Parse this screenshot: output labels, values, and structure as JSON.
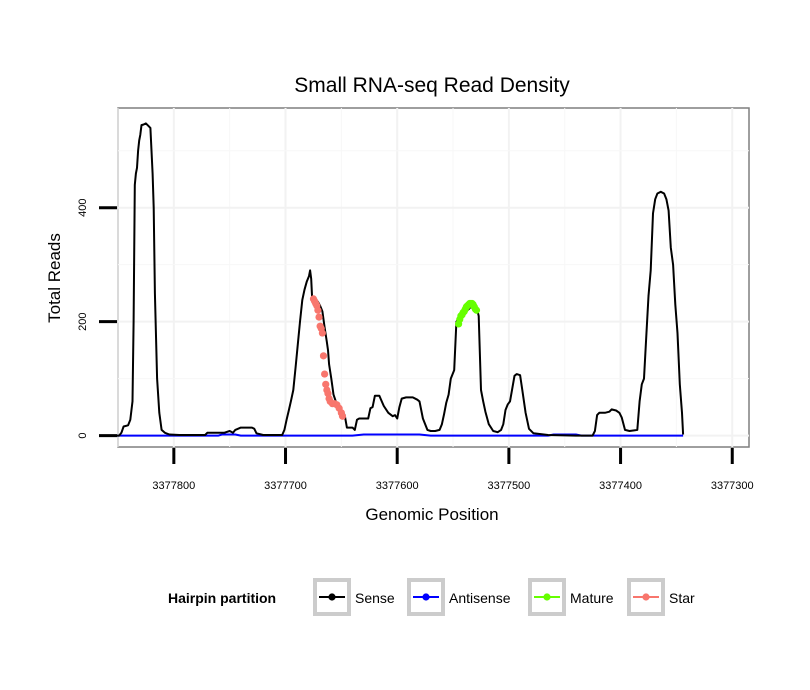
{
  "chart_data": {
    "type": "line",
    "title": "Small RNA-seq Read Density",
    "xlabel": "Genomic Position",
    "ylabel": "Total Reads",
    "x_reversed": true,
    "xlim": [
      3377850,
      3377285
    ],
    "ylim": [
      -20,
      575
    ],
    "x_ticks": [
      3377800,
      3377700,
      3377600,
      3377500,
      3377400,
      3377300
    ],
    "x_tick_labels": [
      "3377800",
      "3377700",
      "3377600",
      "3377500",
      "3377400",
      "3377300"
    ],
    "y_ticks": [
      0,
      200,
      400
    ],
    "y_tick_labels": [
      "0",
      "200",
      "400"
    ],
    "grid": true,
    "legend": {
      "title": "Hairpin partition",
      "position": "bottom",
      "entries": [
        {
          "name": "Sense",
          "color": "#000000"
        },
        {
          "name": "Antisense",
          "color": "#0000ff"
        },
        {
          "name": "Mature",
          "color": "#66ff00"
        },
        {
          "name": "Star",
          "color": "#f8766d"
        }
      ]
    },
    "series": [
      {
        "name": "Sense",
        "color": "#000000",
        "style": "line",
        "points": [
          [
            3377854,
            0
          ],
          [
            3377849,
            0
          ],
          [
            3377847,
            5
          ],
          [
            3377845,
            16
          ],
          [
            3377841,
            18
          ],
          [
            3377839,
            28
          ],
          [
            3377837,
            60
          ],
          [
            3377836,
            200
          ],
          [
            3377835,
            440
          ],
          [
            3377834,
            460
          ],
          [
            3377833,
            470
          ],
          [
            3377832,
            500
          ],
          [
            3377831,
            518
          ],
          [
            3377830,
            528
          ],
          [
            3377829,
            545
          ],
          [
            3377827,
            546
          ],
          [
            3377825,
            548
          ],
          [
            3377823,
            544
          ],
          [
            3377821,
            540
          ],
          [
            3377820,
            500
          ],
          [
            3377819,
            460
          ],
          [
            3377818,
            400
          ],
          [
            3377817,
            250
          ],
          [
            3377815,
            100
          ],
          [
            3377813,
            40
          ],
          [
            3377811,
            10
          ],
          [
            3377808,
            5
          ],
          [
            3377804,
            2
          ],
          [
            3377795,
            1
          ],
          [
            3377780,
            1
          ],
          [
            3377772,
            1
          ],
          [
            3377770,
            5
          ],
          [
            3377755,
            5
          ],
          [
            3377750,
            8
          ],
          [
            3377747,
            5
          ],
          [
            3377745,
            10
          ],
          [
            3377740,
            14
          ],
          [
            3377735,
            14
          ],
          [
            3377730,
            14
          ],
          [
            3377728,
            12
          ],
          [
            3377726,
            4
          ],
          [
            3377720,
            1
          ],
          [
            3377703,
            1
          ],
          [
            3377701,
            10
          ],
          [
            3377699,
            28
          ],
          [
            3377697,
            45
          ],
          [
            3377695,
            62
          ],
          [
            3377693,
            80
          ],
          [
            3377691,
            120
          ],
          [
            3377689,
            160
          ],
          [
            3377687,
            200
          ],
          [
            3377685,
            238
          ],
          [
            3377683,
            256
          ],
          [
            3377681,
            270
          ],
          [
            3377679,
            280
          ],
          [
            3377678,
            290
          ],
          [
            3377677,
            275
          ],
          [
            3377676,
            235
          ],
          [
            3377673,
            233
          ],
          [
            3377671,
            235
          ],
          [
            3377669,
            228
          ],
          [
            3377667,
            218
          ],
          [
            3377665,
            190
          ],
          [
            3377663,
            165
          ],
          [
            3377662,
            150
          ],
          [
            3377661,
            125
          ],
          [
            3377659,
            100
          ],
          [
            3377657,
            72
          ],
          [
            3377655,
            60
          ],
          [
            3377653,
            55
          ],
          [
            3377651,
            50
          ],
          [
            3377649,
            42
          ],
          [
            3377647,
            36
          ],
          [
            3377645,
            14
          ],
          [
            3377640,
            14
          ],
          [
            3377638,
            10
          ],
          [
            3377636,
            28
          ],
          [
            3377634,
            30
          ],
          [
            3377630,
            30
          ],
          [
            3377626,
            30
          ],
          [
            3377624,
            48
          ],
          [
            3377622,
            50
          ],
          [
            3377620,
            70
          ],
          [
            3377616,
            70
          ],
          [
            3377612,
            52
          ],
          [
            3377608,
            40
          ],
          [
            3377604,
            34
          ],
          [
            3377602,
            36
          ],
          [
            3377600,
            30
          ],
          [
            3377598,
            50
          ],
          [
            3377596,
            65
          ],
          [
            3377592,
            67
          ],
          [
            3377586,
            67
          ],
          [
            3377582,
            63
          ],
          [
            3377580,
            60
          ],
          [
            3377577,
            30
          ],
          [
            3377573,
            10
          ],
          [
            3377570,
            8
          ],
          [
            3377566,
            8
          ],
          [
            3377562,
            10
          ],
          [
            3377560,
            20
          ],
          [
            3377558,
            38
          ],
          [
            3377556,
            58
          ],
          [
            3377554,
            72
          ],
          [
            3377552,
            100
          ],
          [
            3377549,
            115
          ],
          [
            3377547,
            200
          ],
          [
            3377544,
            208
          ],
          [
            3377541,
            212
          ],
          [
            3377538,
            218
          ],
          [
            3377535,
            224
          ],
          [
            3377533,
            232
          ],
          [
            3377531,
            232
          ],
          [
            3377529,
            226
          ],
          [
            3377527,
            210
          ],
          [
            3377525,
            80
          ],
          [
            3377523,
            60
          ],
          [
            3377521,
            42
          ],
          [
            3377518,
            20
          ],
          [
            3377514,
            8
          ],
          [
            3377510,
            6
          ],
          [
            3377507,
            10
          ],
          [
            3377505,
            20
          ],
          [
            3377503,
            45
          ],
          [
            3377501,
            55
          ],
          [
            3377499,
            60
          ],
          [
            3377497,
            82
          ],
          [
            3377495,
            105
          ],
          [
            3377493,
            108
          ],
          [
            3377490,
            106
          ],
          [
            3377488,
            80
          ],
          [
            3377485,
            40
          ],
          [
            3377482,
            12
          ],
          [
            3377478,
            4
          ],
          [
            3377465,
            1
          ],
          [
            3377440,
            0
          ],
          [
            3377425,
            0
          ],
          [
            3377423,
            8
          ],
          [
            3377421,
            36
          ],
          [
            3377419,
            40
          ],
          [
            3377414,
            40
          ],
          [
            3377410,
            42
          ],
          [
            3377408,
            46
          ],
          [
            3377404,
            44
          ],
          [
            3377401,
            40
          ],
          [
            3377399,
            32
          ],
          [
            3377396,
            10
          ],
          [
            3377392,
            8
          ],
          [
            3377385,
            10
          ],
          [
            3377383,
            60
          ],
          [
            3377381,
            90
          ],
          [
            3377379,
            100
          ],
          [
            3377377,
            175
          ],
          [
            3377375,
            245
          ],
          [
            3377373,
            290
          ],
          [
            3377371,
            390
          ],
          [
            3377369,
            415
          ],
          [
            3377367,
            425
          ],
          [
            3377364,
            428
          ],
          [
            3377361,
            425
          ],
          [
            3377359,
            415
          ],
          [
            3377357,
            395
          ],
          [
            3377355,
            330
          ],
          [
            3377353,
            300
          ],
          [
            3377351,
            230
          ],
          [
            3377349,
            180
          ],
          [
            3377347,
            90
          ],
          [
            3377345,
            40
          ],
          [
            3377344,
            2
          ]
        ]
      },
      {
        "name": "Antisense",
        "color": "#0000ff",
        "style": "line",
        "points": [
          [
            3377854,
            0
          ],
          [
            3377760,
            0
          ],
          [
            3377757,
            2
          ],
          [
            3377745,
            2
          ],
          [
            3377740,
            0
          ],
          [
            3377640,
            0
          ],
          [
            3377630,
            2
          ],
          [
            3377580,
            2
          ],
          [
            3377570,
            0
          ],
          [
            3377465,
            0
          ],
          [
            3377460,
            2
          ],
          [
            3377440,
            2
          ],
          [
            3377435,
            0
          ],
          [
            3377344,
            0
          ]
        ]
      },
      {
        "name": "Mature",
        "color": "#66ff00",
        "style": "points",
        "points": [
          [
            3377545,
            196
          ],
          [
            3377544,
            204
          ],
          [
            3377543,
            210
          ],
          [
            3377542,
            212
          ],
          [
            3377541,
            216
          ],
          [
            3377540,
            218
          ],
          [
            3377539,
            222
          ],
          [
            3377538,
            226
          ],
          [
            3377537,
            228
          ],
          [
            3377536,
            230
          ],
          [
            3377535,
            232
          ],
          [
            3377534,
            232
          ],
          [
            3377533,
            232
          ],
          [
            3377532,
            230
          ],
          [
            3377531,
            226
          ],
          [
            3377530,
            222
          ],
          [
            3377529,
            220
          ]
        ]
      },
      {
        "name": "Star",
        "color": "#f8766d",
        "style": "points",
        "points": [
          [
            3377675,
            240
          ],
          [
            3377674,
            236
          ],
          [
            3377673,
            232
          ],
          [
            3377672,
            228
          ],
          [
            3377671,
            220
          ],
          [
            3377670,
            208
          ],
          [
            3377669,
            192
          ],
          [
            3377668,
            188
          ],
          [
            3377667,
            180
          ],
          [
            3377666,
            140
          ],
          [
            3377665,
            108
          ],
          [
            3377664,
            90
          ],
          [
            3377663,
            80
          ],
          [
            3377662,
            74
          ],
          [
            3377661,
            65
          ],
          [
            3377660,
            60
          ],
          [
            3377658,
            56
          ],
          [
            3377656,
            56
          ],
          [
            3377654,
            54
          ],
          [
            3377652,
            48
          ],
          [
            3377650,
            40
          ],
          [
            3377649,
            34
          ]
        ]
      }
    ]
  }
}
